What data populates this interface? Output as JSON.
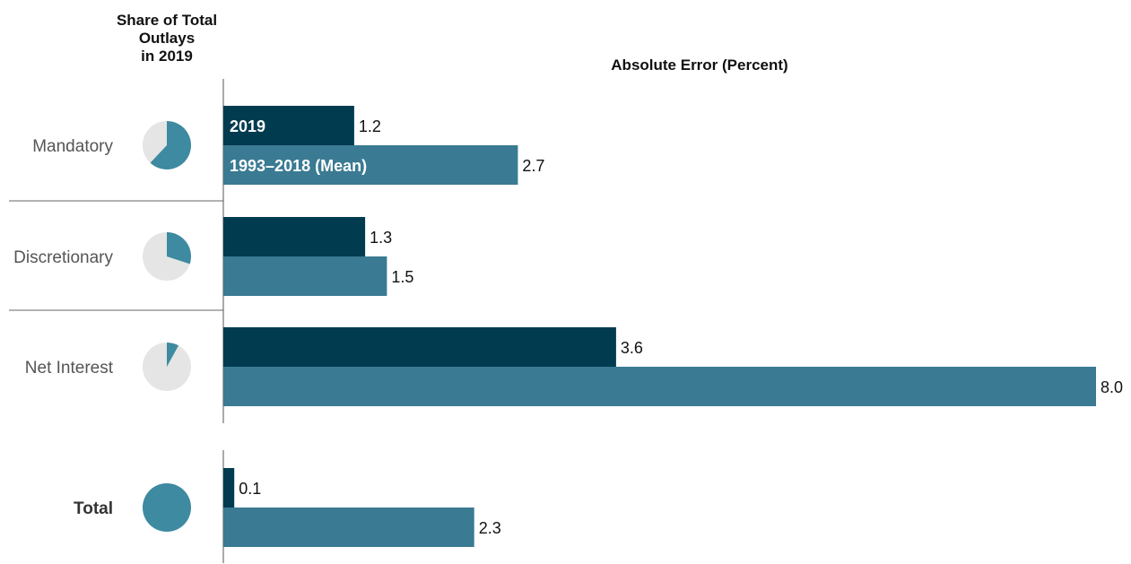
{
  "colors": {
    "series_2019": "#003b50",
    "series_mean": "#3a7a92",
    "pie_share": "#3d8aa1",
    "pie_rest": "#e5e5e5",
    "axis": "#555555"
  },
  "left_header_lines": [
    "Share of Total",
    "Outlays",
    "in 2019"
  ],
  "chart_data": {
    "type": "bar",
    "orientation": "horizontal",
    "title": "",
    "xlabel": "Absolute Error (Percent)",
    "ylabel": "",
    "xlim": [
      0,
      8
    ],
    "grid": false,
    "legend": "in-bar labels on first category",
    "categories": [
      "Mandatory",
      "Discretionary",
      "Net Interest",
      "Total"
    ],
    "series": [
      {
        "name": "2019",
        "values": [
          1.2,
          1.3,
          3.6,
          0.1
        ],
        "value_labels": [
          "1.2",
          "1.3",
          "3.6",
          "0.1"
        ]
      },
      {
        "name": "1993–2018 (Mean)",
        "values": [
          2.7,
          1.5,
          8.0,
          2.3
        ],
        "value_labels": [
          "2.7",
          "1.5",
          "8.0",
          "2.3"
        ]
      }
    ],
    "share_of_total_outlays_2019": [
      0.62,
      0.3,
      0.08,
      1.0
    ]
  }
}
